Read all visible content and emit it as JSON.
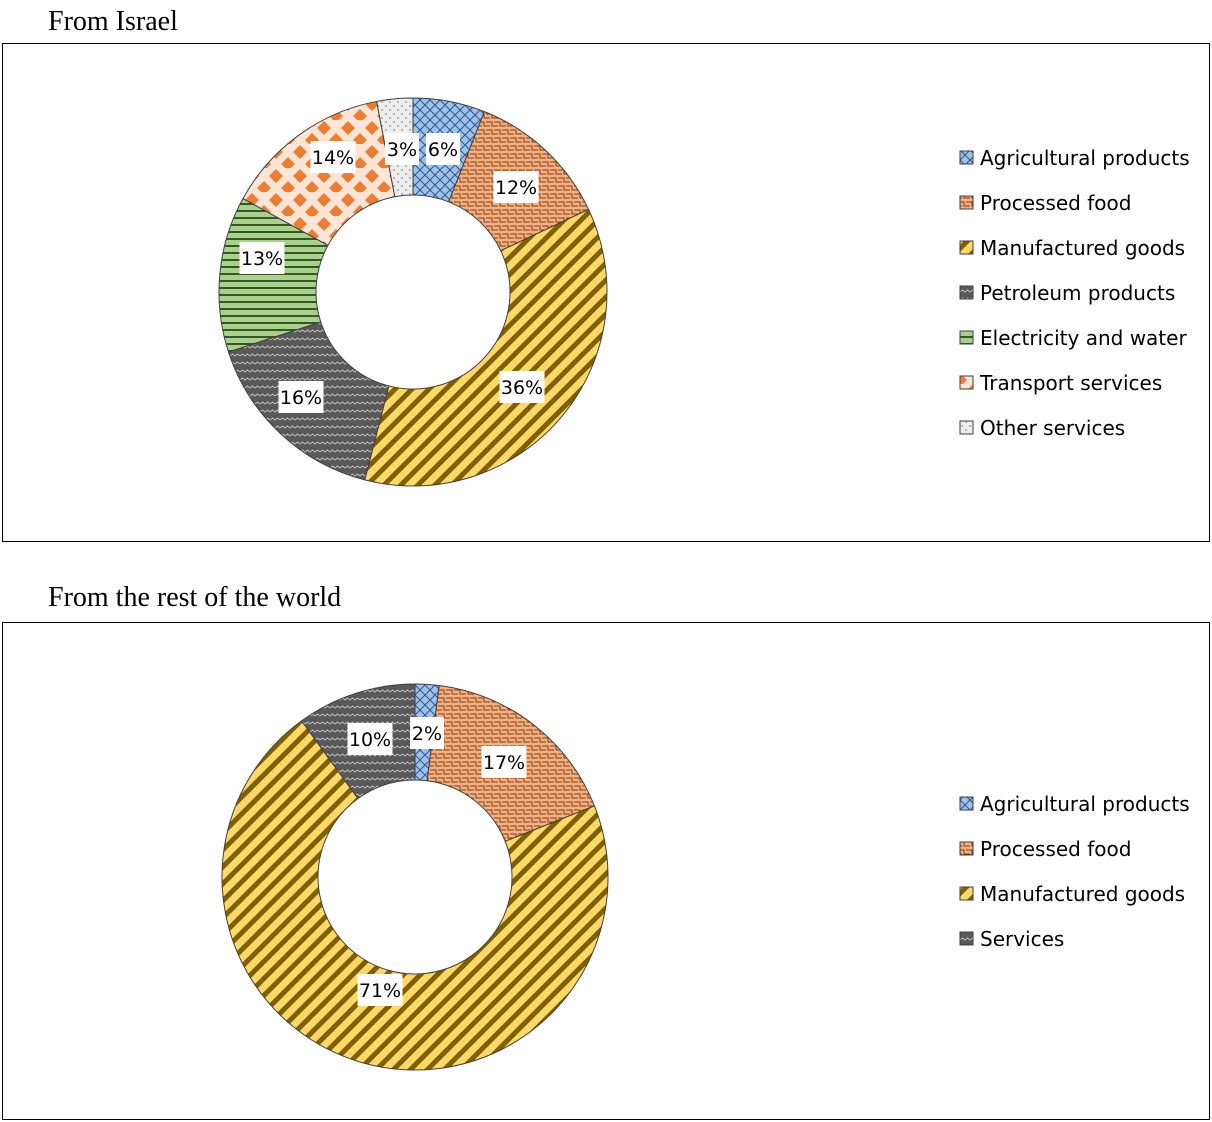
{
  "chart_data": [
    {
      "type": "pie",
      "title": "From Israel",
      "categories": [
        "Agricultural products",
        "Processed food",
        "Manufactured goods",
        "Petroleum products",
        "Electricity and water",
        "Transport services",
        "Other services"
      ],
      "values": [
        6,
        12,
        36,
        16,
        13,
        14,
        3
      ],
      "labels": [
        "6%",
        "12%",
        "36%",
        "16%",
        "13%",
        "14%",
        "3%"
      ],
      "donut": true,
      "legend": "right",
      "colors": [
        "#9dc3e6",
        "#f4b183",
        "#ffd966",
        "#595959",
        "#a9d18e",
        "#ed7d31",
        "#d9d9d9"
      ],
      "patterns": [
        "crosshatch",
        "brick",
        "diagonal",
        "wave",
        "horizontal",
        "diamond",
        "dots"
      ]
    },
    {
      "type": "pie",
      "title": "From the rest of the world",
      "categories": [
        "Agricultural products",
        "Processed food",
        "Manufactured goods",
        "Services"
      ],
      "values": [
        2,
        17,
        71,
        10
      ],
      "labels": [
        "2%",
        "17%",
        "71%",
        "10%"
      ],
      "donut": true,
      "legend": "right",
      "colors": [
        "#9dc3e6",
        "#f4b183",
        "#ffd966",
        "#595959"
      ],
      "patterns": [
        "crosshatch",
        "brick",
        "diagonal",
        "wave"
      ]
    }
  ]
}
